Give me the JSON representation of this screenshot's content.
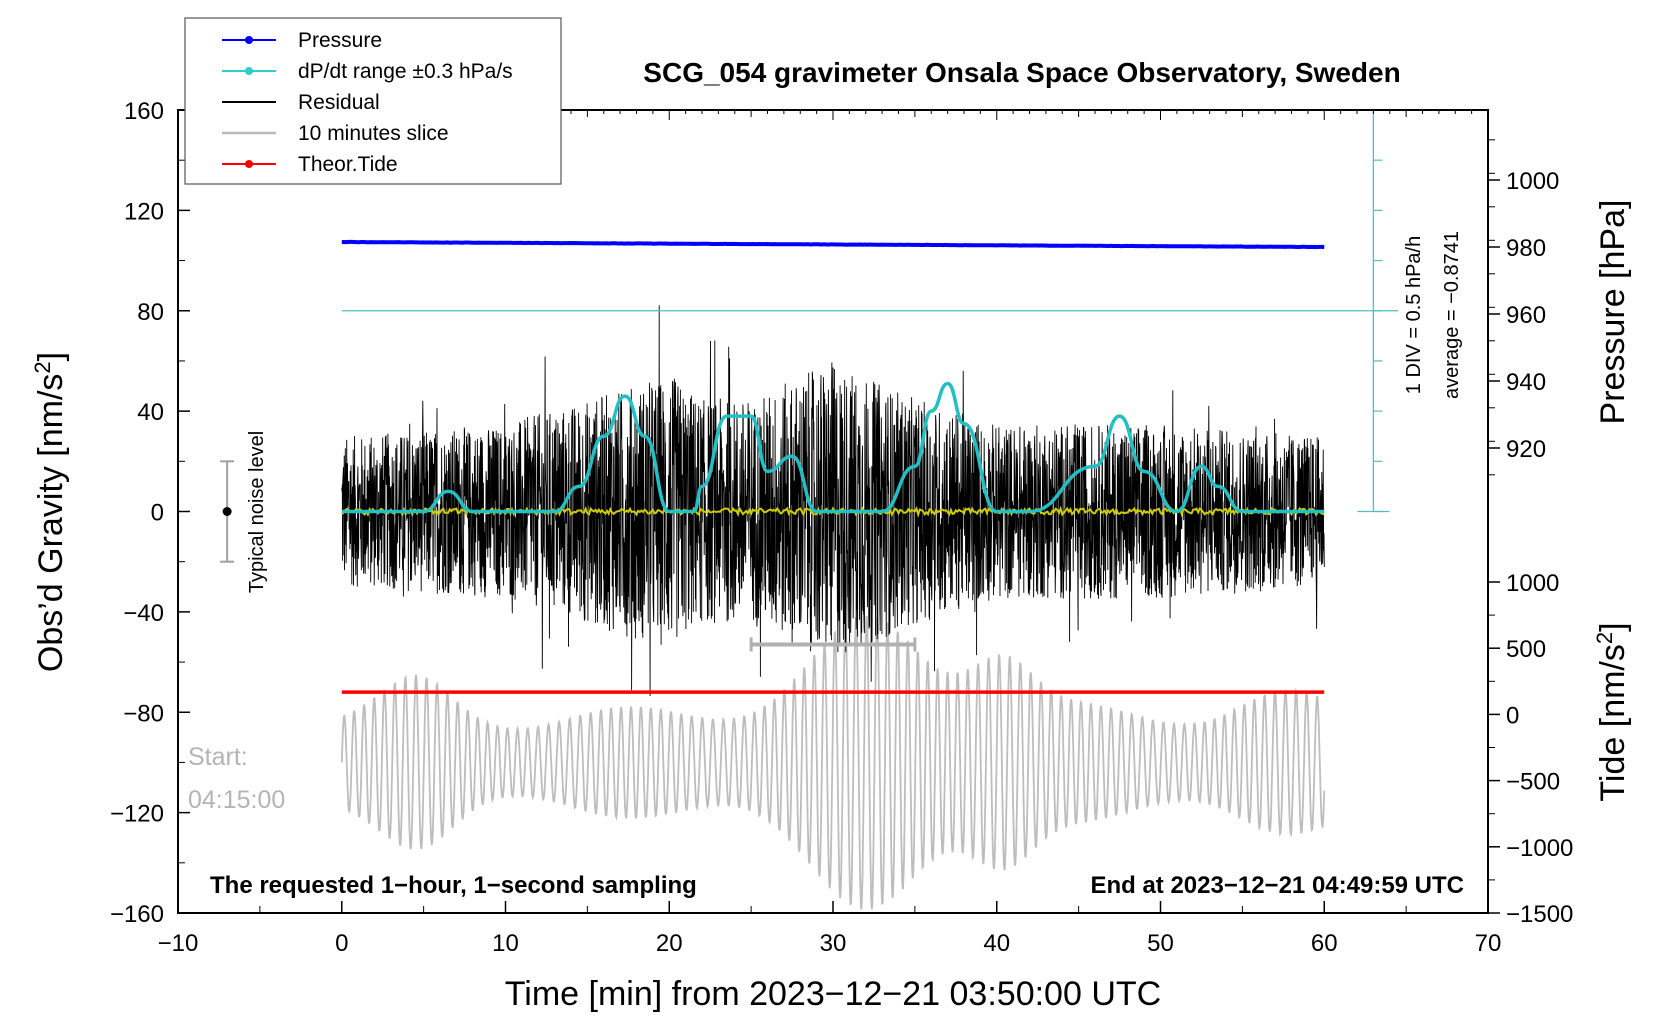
{
  "chart_data": {
    "type": "line",
    "title": "SCG_054 gravimeter Onsala Space Observatory, Sweden",
    "xlabel": "Time [min] from 2023−12−21 03:50:00 UTC",
    "ylabel_left_main": "Obs’d Gravity [nm/s",
    "ylabel_left_sup": "2",
    "ylabel_left_end": "]",
    "ylabel_right_pressure": "Pressure [hPa]",
    "ylabel_right_tide_main": "Tide [nm/s",
    "ylabel_right_tide_sup": "2",
    "ylabel_right_tide_end": "]",
    "xlim": [
      -10,
      70
    ],
    "ylim_left": [
      -160,
      160
    ],
    "x_ticks": [
      "−10",
      "0",
      "10",
      "20",
      "30",
      "40",
      "50",
      "60",
      "70"
    ],
    "x_tick_values": [
      -10,
      0,
      10,
      20,
      30,
      40,
      50,
      60,
      70
    ],
    "y_ticks_left": [
      "160",
      "120",
      "80",
      "40",
      "0",
      "−40",
      "−80",
      "−120",
      "−160"
    ],
    "y_tick_values_left": [
      160,
      120,
      80,
      40,
      0,
      -40,
      -80,
      -120,
      -160
    ],
    "pressure_axis": {
      "range_hpa": [
        900,
        1020
      ],
      "ticks": [
        "1000",
        "980",
        "960",
        "940",
        "920"
      ],
      "tick_values": [
        1000,
        980,
        960,
        940,
        920
      ]
    },
    "tide_axis": {
      "range": [
        -1500,
        1000
      ],
      "ticks": [
        "1000",
        "500",
        "0",
        "−500",
        "−1000",
        "−1500"
      ],
      "tick_values": [
        1000,
        500,
        0,
        -500,
        -1000,
        -1500
      ]
    },
    "legend": {
      "placement": "top-left",
      "entries": [
        {
          "label": "Pressure",
          "color": "#0000ff",
          "marker": true
        },
        {
          "label": "dP/dt range ±0.3 hPa/s",
          "color": "#33cccc",
          "marker": true
        },
        {
          "label": "Residual",
          "color": "#000000",
          "marker": false
        },
        {
          "label": "10 minutes slice",
          "color": "#bbbbbb",
          "marker": false
        },
        {
          "label": "Theor.Tide",
          "color": "#ff0000",
          "marker": true
        }
      ]
    },
    "series": [
      {
        "name": "Pressure",
        "color": "#0000ff",
        "x": [
          0,
          60
        ],
        "y_hpa": [
          981.5,
          980.0
        ]
      },
      {
        "name": "dP/dt range ±0.3 hPa/s",
        "color": "#33cccc",
        "x": [
          0,
          5,
          6.5,
          8,
          10,
          13,
          14.5,
          16,
          17.3,
          18.5,
          20,
          21.5,
          22,
          23.5,
          25,
          26,
          27.5,
          29,
          31,
          33,
          35,
          36,
          37,
          38,
          40,
          42,
          46,
          47.5,
          49,
          51,
          52.5,
          53.5,
          55,
          57,
          60
        ],
        "y": [
          0,
          0,
          8,
          0,
          0,
          0,
          10,
          30,
          46,
          30,
          0,
          0,
          10,
          38,
          38,
          16,
          22,
          0,
          0,
          0,
          18,
          40,
          51,
          35,
          0,
          0,
          18,
          38,
          16,
          0,
          18,
          10,
          0,
          0,
          0
        ]
      },
      {
        "name": "Residual",
        "color": "#000000",
        "amplitude_envelope": [
          [
            0,
            30
          ],
          [
            10,
            35
          ],
          [
            15,
            45
          ],
          [
            20,
            55
          ],
          [
            22,
            45
          ],
          [
            25,
            45
          ],
          [
            30,
            60
          ],
          [
            35,
            45
          ],
          [
            40,
            35
          ],
          [
            50,
            35
          ],
          [
            60,
            30
          ]
        ]
      },
      {
        "name": "10 minutes slice",
        "color": "#bbbbbb"
      },
      {
        "name": "Theor.Tide",
        "color": "#ff0000",
        "x": [
          0,
          60
        ],
        "y": [
          -72,
          -72
        ]
      },
      {
        "name": "Mean",
        "color": "#cccc00",
        "x": [
          0,
          60
        ],
        "y": [
          0,
          0
        ]
      }
    ],
    "pressure_reference_line_y": 80,
    "slice_bracket_x": [
      25,
      35
    ],
    "slice_bracket_y": -53,
    "div_scale_label": "1 DIV = 0.5 hPa/h",
    "average_label": "average = −0.8741",
    "noise_label": "Typical noise level",
    "noise_range": [
      -20,
      20
    ],
    "start_label": "Start:",
    "start_time": "04:15:00",
    "note_left": "The requested 1−hour, 1−second sampling",
    "note_right": "End at 2023−12−21 04:49:59 UTC"
  }
}
